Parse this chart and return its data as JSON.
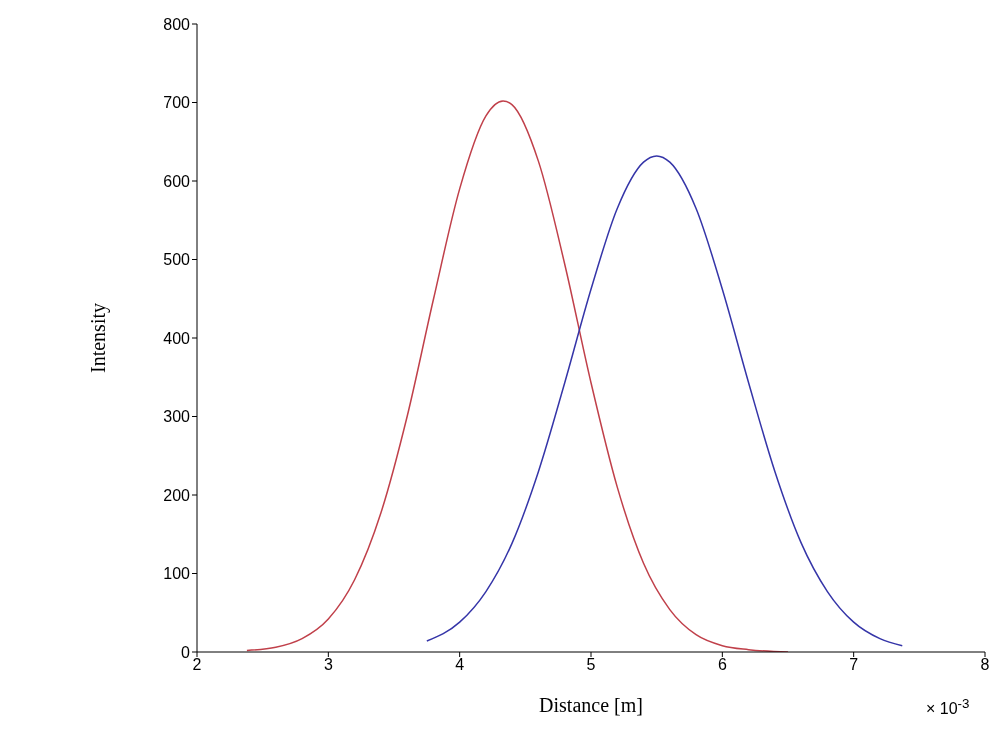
{
  "chart_data": {
    "type": "line",
    "xlabel": "Distance [m]",
    "ylabel": "Intensity",
    "xlim": [
      2,
      8
    ],
    "xticks": [
      2,
      3,
      4,
      5,
      6,
      7,
      8
    ],
    "ylim": [
      0,
      800
    ],
    "yticks": [
      0,
      100,
      200,
      300,
      400,
      500,
      600,
      700,
      800
    ],
    "grid": false,
    "marker": "none",
    "line_style": "solid",
    "annotations": [
      "× 10$^{-3}$"
    ],
    "series": [
      {
        "color": "#c0404a",
        "x": [
          2.38,
          2.6,
          2.8,
          3.0,
          3.2,
          3.4,
          3.6,
          3.8,
          4.0,
          4.2,
          4.33,
          4.4,
          4.6,
          4.8,
          5.0,
          5.2,
          5.4,
          5.6,
          5.8,
          6.0,
          6.2,
          6.5
        ],
        "values": [
          2,
          6,
          17,
          42,
          92,
          177,
          300,
          449,
          590,
          683,
          702,
          697,
          625,
          494,
          343,
          210,
          113,
          54,
          22,
          8,
          3,
          0
        ]
      },
      {
        "color": "#3535a8",
        "x": [
          3.75,
          4.0,
          4.2,
          4.4,
          4.6,
          4.8,
          5.0,
          5.2,
          5.4,
          5.5,
          5.6,
          5.8,
          6.0,
          6.2,
          6.4,
          6.6,
          6.8,
          7.0,
          7.2,
          7.37
        ],
        "values": [
          14,
          38,
          77,
          139,
          230,
          343,
          462,
          565,
          624,
          632,
          624,
          565,
          462,
          343,
          230,
          139,
          77,
          38,
          17,
          8
        ]
      }
    ]
  }
}
